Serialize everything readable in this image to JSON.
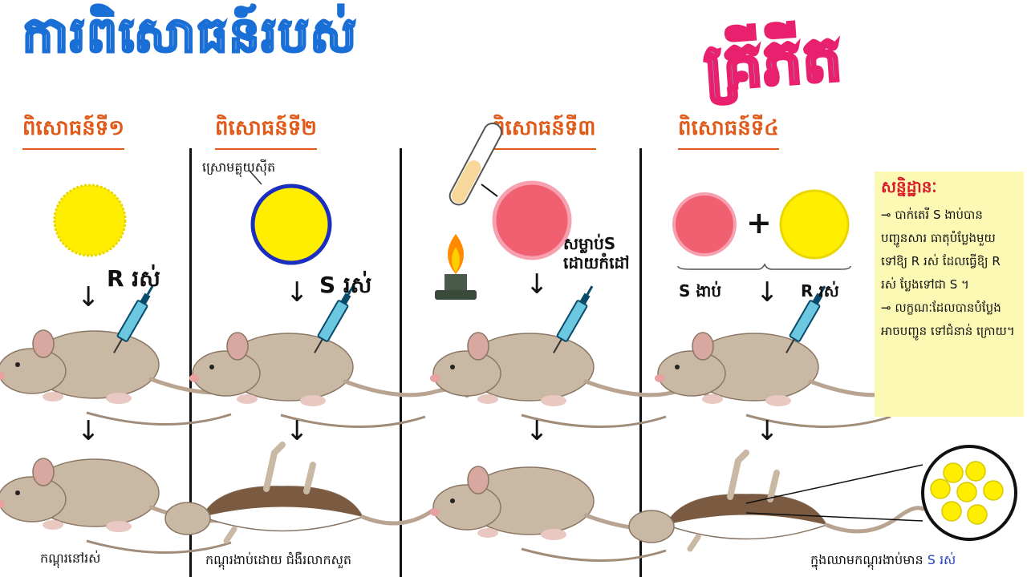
{
  "header": {
    "title": "ការពិសោធន៍របស់",
    "scientist": "គ្រីភីត"
  },
  "experiments": [
    {
      "label": "ពិសោធន៍ទី១",
      "strain": "R រស់",
      "outcome": "កណ្ដុរនៅរស់"
    },
    {
      "label": "ពិសោធន៍ទី២",
      "capsule_label": "ស្រោមគ្លុយស៊ីត",
      "strain": "S រស់",
      "outcome": "កណ្ដុរងាប់ដោយ ជំងឺរលាកសួត"
    },
    {
      "label": "ពិសោធន៍ទី៣",
      "strain": "សម្លាប់S ដោយកំដៅ"
    },
    {
      "label": "ពិសោធន៍ទី៤",
      "strain_dead": "S ងាប់",
      "plus": "+",
      "strain_live": "R រស់",
      "outcome_prefix": "ក្នុងឈាមកណ្ដុរងាប់មាន ",
      "outcome_highlight": "S រស់"
    }
  ],
  "conclusion": {
    "title": "សន្និដ្ឋានៈ",
    "lines": [
      "⊸ បាក់តេរី S ងាប់បានបញ្ជូនសារ ធាតុបំប្លែងមួយទៅឱ្យ R រស់ ដែលធ្វើឱ្យ R រស់ ប្លែងទៅជា S ។",
      "⊸ លក្ខណៈដែលបានបំប្លែងអាចបញ្ជូន ទៅជំនាន់ ក្រោយ។"
    ]
  },
  "colors": {
    "title_stroke": "#1a6fd6",
    "badge_fill": "#5fe0e8",
    "badge_stroke": "#e8206e",
    "label": "#e05a1a",
    "yellow_cell": "#ffee00",
    "pink_cell": "#f06070",
    "capsule_ring": "#1a2fc0",
    "mouse": "#c9b8a4",
    "highlight_text": "#2040c0",
    "conclusion_bg": "#fcf9b4"
  }
}
